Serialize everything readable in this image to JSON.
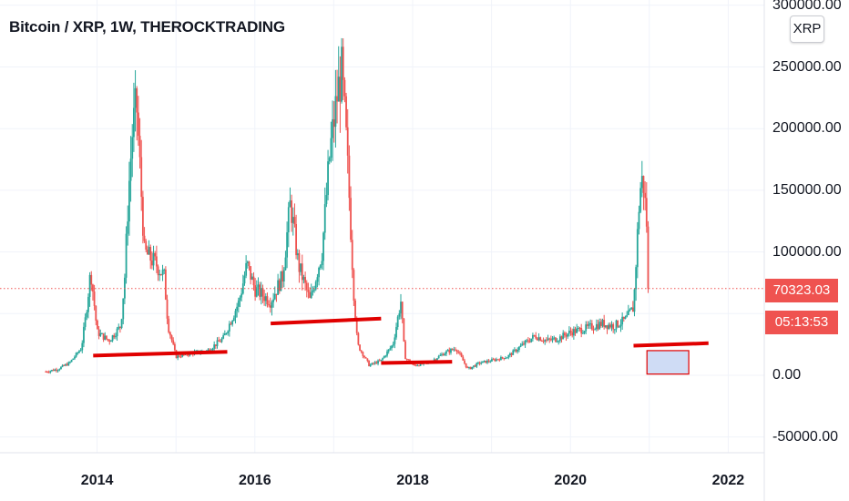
{
  "title": "Bitcoin / XRP, 1W, THEROCKTRADING",
  "symbol_badge": "XRP",
  "last_price": "70323.03",
  "countdown": "05:13:53",
  "colors": {
    "up": "#26a69a",
    "down": "#ef5350",
    "annotation": "#e00000",
    "box_fill": "#cfdcf5",
    "grid": "#f0f3fa"
  },
  "chart_data": {
    "type": "candlestick",
    "title": "Bitcoin / XRP, 1W, THEROCKTRADING",
    "ylim": [
      -60000,
      305000
    ],
    "xlim": [
      2013.0,
      2022.8
    ],
    "y_ticks": [
      "300000.00",
      "250000.00",
      "200000.00",
      "150000.00",
      "100000.00",
      "0.00",
      "-50000.00"
    ],
    "x_ticks": [
      "2014",
      "2016",
      "2018",
      "2020",
      "2022"
    ],
    "last_price": 70323.03,
    "price_path": [
      [
        2013.35,
        3000
      ],
      [
        2013.5,
        5000
      ],
      [
        2013.65,
        10000
      ],
      [
        2013.8,
        22000
      ],
      [
        2013.85,
        45000
      ],
      [
        2013.92,
        85000
      ],
      [
        2014.0,
        35000
      ],
      [
        2014.15,
        28000
      ],
      [
        2014.3,
        40000
      ],
      [
        2014.35,
        80000
      ],
      [
        2014.4,
        150000
      ],
      [
        2014.45,
        200000
      ],
      [
        2014.5,
        220000
      ],
      [
        2014.55,
        160000
      ],
      [
        2014.6,
        100000
      ],
      [
        2014.75,
        90000
      ],
      [
        2014.85,
        80000
      ],
      [
        2014.9,
        40000
      ],
      [
        2015.0,
        15000
      ],
      [
        2015.2,
        18000
      ],
      [
        2015.4,
        20000
      ],
      [
        2015.6,
        30000
      ],
      [
        2015.8,
        60000
      ],
      [
        2015.9,
        90000
      ],
      [
        2016.0,
        70000
      ],
      [
        2016.2,
        60000
      ],
      [
        2016.35,
        80000
      ],
      [
        2016.45,
        140000
      ],
      [
        2016.55,
        90000
      ],
      [
        2016.7,
        60000
      ],
      [
        2016.85,
        100000
      ],
      [
        2016.95,
        180000
      ],
      [
        2017.05,
        230000
      ],
      [
        2017.1,
        245000
      ],
      [
        2017.15,
        200000
      ],
      [
        2017.2,
        140000
      ],
      [
        2017.25,
        70000
      ],
      [
        2017.3,
        25000
      ],
      [
        2017.45,
        8000
      ],
      [
        2017.6,
        12000
      ],
      [
        2017.75,
        25000
      ],
      [
        2017.85,
        60000
      ],
      [
        2017.9,
        15000
      ],
      [
        2018.0,
        8000
      ],
      [
        2018.2,
        10000
      ],
      [
        2018.4,
        18000
      ],
      [
        2018.55,
        22000
      ],
      [
        2018.7,
        5000
      ],
      [
        2018.85,
        10000
      ],
      [
        2019.0,
        12000
      ],
      [
        2019.2,
        15000
      ],
      [
        2019.4,
        25000
      ],
      [
        2019.55,
        32000
      ],
      [
        2019.7,
        28000
      ],
      [
        2019.85,
        30000
      ],
      [
        2020.0,
        35000
      ],
      [
        2020.2,
        38000
      ],
      [
        2020.4,
        42000
      ],
      [
        2020.55,
        40000
      ],
      [
        2020.7,
        45000
      ],
      [
        2020.8,
        55000
      ],
      [
        2020.88,
        150000
      ],
      [
        2020.92,
        160000
      ],
      [
        2020.97,
        120000
      ],
      [
        2021.0,
        70323.03
      ]
    ],
    "annotations": [
      {
        "type": "support_line",
        "from": [
          2013.95,
          16000
        ],
        "to": [
          2015.65,
          19000
        ]
      },
      {
        "type": "support_line",
        "from": [
          2016.2,
          42000
        ],
        "to": [
          2017.6,
          46000
        ]
      },
      {
        "type": "support_line",
        "from": [
          2017.6,
          10000
        ],
        "to": [
          2018.5,
          11000
        ]
      },
      {
        "type": "support_line",
        "from": [
          2020.8,
          24000
        ],
        "to": [
          2021.75,
          26000
        ]
      },
      {
        "type": "box",
        "from": [
          2020.97,
          1000
        ],
        "to": [
          2021.5,
          20000
        ]
      }
    ]
  }
}
